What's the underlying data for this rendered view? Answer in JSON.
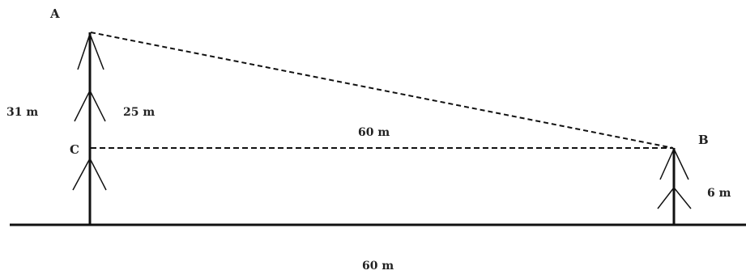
{
  "points": {
    "a": "A",
    "b": "B",
    "c": "C"
  },
  "measurements": {
    "tall_tree_height": "31 m",
    "upper_segment": "25 m",
    "horizontal_gap": "60 m",
    "short_tree_height": "6 m",
    "ground_distance": "60 m"
  },
  "colors": {
    "ink": "#111111",
    "background": "#ffffff"
  }
}
